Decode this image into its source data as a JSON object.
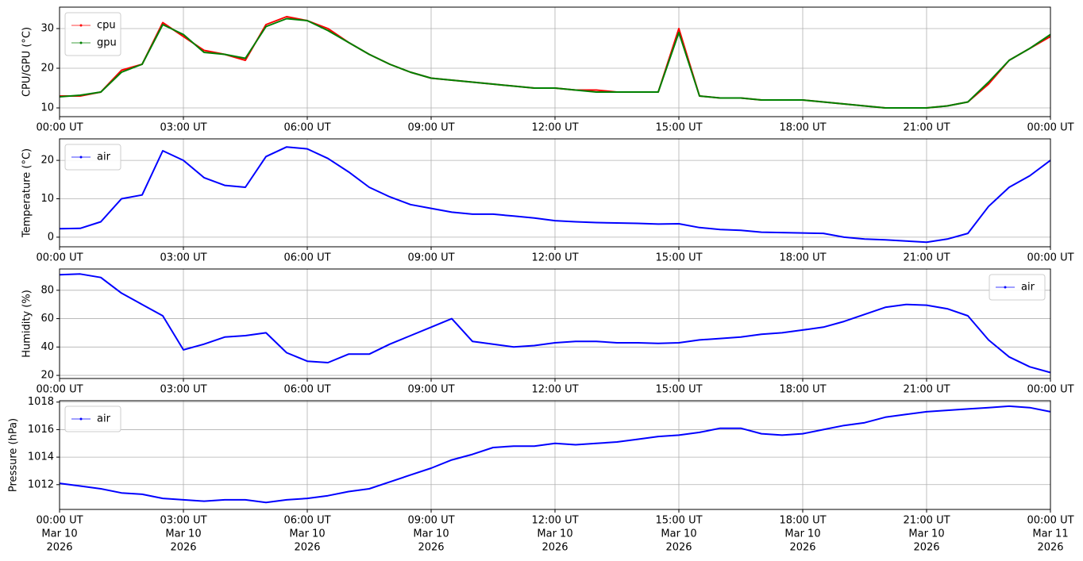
{
  "chart_data": [
    {
      "type": "line",
      "ylabel": "CPU/GPU (°C)",
      "x": [
        "2026-03-10 00:00",
        "2026-03-10 00:30",
        "2026-03-10 01:00",
        "2026-03-10 01:30",
        "2026-03-10 02:00",
        "2026-03-10 02:30",
        "2026-03-10 03:00",
        "2026-03-10 03:30",
        "2026-03-10 04:00",
        "2026-03-10 04:30",
        "2026-03-10 05:00",
        "2026-03-10 05:30",
        "2026-03-10 06:00",
        "2026-03-10 06:30",
        "2026-03-10 07:00",
        "2026-03-10 07:30",
        "2026-03-10 08:00",
        "2026-03-10 08:30",
        "2026-03-10 09:00",
        "2026-03-10 09:30",
        "2026-03-10 10:00",
        "2026-03-10 10:30",
        "2026-03-10 11:00",
        "2026-03-10 11:30",
        "2026-03-10 12:00",
        "2026-03-10 12:30",
        "2026-03-10 13:00",
        "2026-03-10 13:30",
        "2026-03-10 14:00",
        "2026-03-10 14:30",
        "2026-03-10 15:00",
        "2026-03-10 15:30",
        "2026-03-10 16:00",
        "2026-03-10 16:30",
        "2026-03-10 17:00",
        "2026-03-10 17:30",
        "2026-03-10 18:00",
        "2026-03-10 18:30",
        "2026-03-10 19:00",
        "2026-03-10 19:30",
        "2026-03-10 20:00",
        "2026-03-10 20:30",
        "2026-03-10 21:00",
        "2026-03-10 21:30",
        "2026-03-10 22:00",
        "2026-03-10 22:30",
        "2026-03-10 23:00",
        "2026-03-10 23:30",
        "2026-03-11 00:00"
      ],
      "series": [
        {
          "name": "cpu",
          "color": "#ff0000",
          "values": [
            13,
            13,
            14,
            19.5,
            21,
            31.5,
            28,
            24.5,
            23.5,
            22,
            31,
            33,
            32,
            30,
            26.5,
            23.5,
            21,
            19,
            17.5,
            17,
            16.5,
            16,
            15.5,
            15,
            15,
            14.5,
            14.5,
            14,
            14,
            14,
            30,
            13,
            12.5,
            12.5,
            12,
            12,
            12,
            11.5,
            11,
            10.5,
            10,
            10,
            10,
            10.5,
            11.5,
            16,
            22,
            25,
            28
          ]
        },
        {
          "name": "gpu",
          "color": "#008000",
          "values": [
            12.8,
            13.2,
            14,
            19,
            21,
            31,
            28.5,
            24,
            23.5,
            22.5,
            30.5,
            32.5,
            32,
            29.5,
            26.5,
            23.5,
            21,
            19,
            17.5,
            17,
            16.5,
            16,
            15.5,
            15,
            15,
            14.5,
            14,
            14,
            14,
            14,
            29,
            13,
            12.5,
            12.5,
            12,
            12,
            12,
            11.5,
            11,
            10.5,
            10,
            10,
            10,
            10.5,
            11.5,
            16.5,
            22,
            25,
            28.5
          ]
        }
      ],
      "xlim": [
        "2026-03-10 00:00",
        "2026-03-11 00:00"
      ],
      "xticks": [
        {
          "value": "2026-03-10 00:00",
          "label": "00:00 UT"
        },
        {
          "value": "2026-03-10 03:00",
          "label": "03:00 UT"
        },
        {
          "value": "2026-03-10 06:00",
          "label": "06:00 UT"
        },
        {
          "value": "2026-03-10 09:00",
          "label": "09:00 UT"
        },
        {
          "value": "2026-03-10 12:00",
          "label": "12:00 UT"
        },
        {
          "value": "2026-03-10 15:00",
          "label": "15:00 UT"
        },
        {
          "value": "2026-03-10 18:00",
          "label": "18:00 UT"
        },
        {
          "value": "2026-03-10 21:00",
          "label": "21:00 UT"
        },
        {
          "value": "2026-03-11 00:00",
          "label": "00:00 UT"
        }
      ],
      "ylim": [
        7.8,
        35.4
      ],
      "yticks": [
        10,
        20,
        30
      ],
      "grid": true,
      "legend": "upper left"
    },
    {
      "type": "line",
      "ylabel": "Temperature (°C)",
      "x": [
        "2026-03-10 00:00",
        "2026-03-10 00:30",
        "2026-03-10 01:00",
        "2026-03-10 01:30",
        "2026-03-10 02:00",
        "2026-03-10 02:30",
        "2026-03-10 03:00",
        "2026-03-10 03:30",
        "2026-03-10 04:00",
        "2026-03-10 04:30",
        "2026-03-10 05:00",
        "2026-03-10 05:30",
        "2026-03-10 06:00",
        "2026-03-10 06:30",
        "2026-03-10 07:00",
        "2026-03-10 07:30",
        "2026-03-10 08:00",
        "2026-03-10 08:30",
        "2026-03-10 09:00",
        "2026-03-10 09:30",
        "2026-03-10 10:00",
        "2026-03-10 10:30",
        "2026-03-10 11:00",
        "2026-03-10 11:30",
        "2026-03-10 12:00",
        "2026-03-10 12:30",
        "2026-03-10 13:00",
        "2026-03-10 13:30",
        "2026-03-10 14:00",
        "2026-03-10 14:30",
        "2026-03-10 15:00",
        "2026-03-10 15:30",
        "2026-03-10 16:00",
        "2026-03-10 16:30",
        "2026-03-10 17:00",
        "2026-03-10 17:30",
        "2026-03-10 18:00",
        "2026-03-10 18:30",
        "2026-03-10 19:00",
        "2026-03-10 19:30",
        "2026-03-10 20:00",
        "2026-03-10 20:30",
        "2026-03-10 21:00",
        "2026-03-10 21:30",
        "2026-03-10 22:00",
        "2026-03-10 22:30",
        "2026-03-10 23:00",
        "2026-03-10 23:30",
        "2026-03-11 00:00"
      ],
      "series": [
        {
          "name": "air",
          "color": "#0000ff",
          "values": [
            2.2,
            2.3,
            4,
            10,
            11,
            22.5,
            20,
            15.5,
            13.5,
            13,
            21,
            23.5,
            23,
            20.5,
            17,
            13,
            10.5,
            8.5,
            7.5,
            6.5,
            6,
            6,
            5.5,
            5,
            4.3,
            4,
            3.8,
            3.7,
            3.6,
            3.4,
            3.5,
            2.5,
            2,
            1.8,
            1.3,
            1.2,
            1.1,
            1,
            0,
            -0.5,
            -0.7,
            -1,
            -1.3,
            -0.5,
            1,
            8,
            13,
            16,
            20
          ]
        }
      ],
      "xlim": [
        "2026-03-10 00:00",
        "2026-03-11 00:00"
      ],
      "xticks": [
        {
          "value": "2026-03-10 00:00",
          "label": "00:00 UT"
        },
        {
          "value": "2026-03-10 03:00",
          "label": "03:00 UT"
        },
        {
          "value": "2026-03-10 06:00",
          "label": "06:00 UT"
        },
        {
          "value": "2026-03-10 09:00",
          "label": "09:00 UT"
        },
        {
          "value": "2026-03-10 12:00",
          "label": "12:00 UT"
        },
        {
          "value": "2026-03-10 15:00",
          "label": "15:00 UT"
        },
        {
          "value": "2026-03-10 18:00",
          "label": "18:00 UT"
        },
        {
          "value": "2026-03-10 21:00",
          "label": "21:00 UT"
        },
        {
          "value": "2026-03-11 00:00",
          "label": "00:00 UT"
        }
      ],
      "ylim": [
        -2.5,
        25.6
      ],
      "yticks": [
        0,
        10,
        20
      ],
      "grid": true,
      "legend": "upper left"
    },
    {
      "type": "line",
      "ylabel": "Humidity (%)",
      "x": [
        "2026-03-10 00:00",
        "2026-03-10 00:30",
        "2026-03-10 01:00",
        "2026-03-10 01:30",
        "2026-03-10 02:00",
        "2026-03-10 02:30",
        "2026-03-10 03:00",
        "2026-03-10 03:30",
        "2026-03-10 04:00",
        "2026-03-10 04:30",
        "2026-03-10 05:00",
        "2026-03-10 05:30",
        "2026-03-10 06:00",
        "2026-03-10 06:30",
        "2026-03-10 07:00",
        "2026-03-10 07:30",
        "2026-03-10 08:00",
        "2026-03-10 08:30",
        "2026-03-10 09:00",
        "2026-03-10 09:30",
        "2026-03-10 10:00",
        "2026-03-10 10:30",
        "2026-03-10 11:00",
        "2026-03-10 11:30",
        "2026-03-10 12:00",
        "2026-03-10 12:30",
        "2026-03-10 13:00",
        "2026-03-10 13:30",
        "2026-03-10 14:00",
        "2026-03-10 14:30",
        "2026-03-10 15:00",
        "2026-03-10 15:30",
        "2026-03-10 16:00",
        "2026-03-10 16:30",
        "2026-03-10 17:00",
        "2026-03-10 17:30",
        "2026-03-10 18:00",
        "2026-03-10 18:30",
        "2026-03-10 19:00",
        "2026-03-10 19:30",
        "2026-03-10 20:00",
        "2026-03-10 20:30",
        "2026-03-10 21:00",
        "2026-03-10 21:30",
        "2026-03-10 22:00",
        "2026-03-10 22:30",
        "2026-03-10 23:00",
        "2026-03-10 23:30",
        "2026-03-11 00:00"
      ],
      "series": [
        {
          "name": "air",
          "color": "#0000ff",
          "values": [
            91,
            91.5,
            89,
            78,
            70,
            62,
            38,
            42,
            47,
            48,
            50,
            36,
            30,
            29,
            35,
            35,
            42,
            48,
            54,
            60,
            44,
            42,
            40,
            41,
            43,
            44,
            44,
            43,
            43,
            42.5,
            43,
            45,
            46,
            47,
            49,
            50,
            52,
            54,
            58,
            63,
            68,
            70,
            69.5,
            67,
            62,
            45,
            33,
            26,
            22
          ]
        }
      ],
      "xlim": [
        "2026-03-10 00:00",
        "2026-03-11 00:00"
      ],
      "xticks": [
        {
          "value": "2026-03-10 00:00",
          "label": "00:00 UT"
        },
        {
          "value": "2026-03-10 03:00",
          "label": "03:00 UT"
        },
        {
          "value": "2026-03-10 06:00",
          "label": "06:00 UT"
        },
        {
          "value": "2026-03-10 09:00",
          "label": "09:00 UT"
        },
        {
          "value": "2026-03-10 12:00",
          "label": "12:00 UT"
        },
        {
          "value": "2026-03-10 15:00",
          "label": "15:00 UT"
        },
        {
          "value": "2026-03-10 18:00",
          "label": "18:00 UT"
        },
        {
          "value": "2026-03-10 21:00",
          "label": "21:00 UT"
        },
        {
          "value": "2026-03-11 00:00",
          "label": "00:00 UT"
        }
      ],
      "ylim": [
        17.8,
        95
      ],
      "yticks": [
        20,
        40,
        60,
        80
      ],
      "grid": true,
      "legend": "upper right"
    },
    {
      "type": "line",
      "ylabel": "Pressure (hPa)",
      "x": [
        "2026-03-10 00:00",
        "2026-03-10 00:30",
        "2026-03-10 01:00",
        "2026-03-10 01:30",
        "2026-03-10 02:00",
        "2026-03-10 02:30",
        "2026-03-10 03:00",
        "2026-03-10 03:30",
        "2026-03-10 04:00",
        "2026-03-10 04:30",
        "2026-03-10 05:00",
        "2026-03-10 05:30",
        "2026-03-10 06:00",
        "2026-03-10 06:30",
        "2026-03-10 07:00",
        "2026-03-10 07:30",
        "2026-03-10 08:00",
        "2026-03-10 08:30",
        "2026-03-10 09:00",
        "2026-03-10 09:30",
        "2026-03-10 10:00",
        "2026-03-10 10:30",
        "2026-03-10 11:00",
        "2026-03-10 11:30",
        "2026-03-10 12:00",
        "2026-03-10 12:30",
        "2026-03-10 13:00",
        "2026-03-10 13:30",
        "2026-03-10 14:00",
        "2026-03-10 14:30",
        "2026-03-10 15:00",
        "2026-03-10 15:30",
        "2026-03-10 16:00",
        "2026-03-10 16:30",
        "2026-03-10 17:00",
        "2026-03-10 17:30",
        "2026-03-10 18:00",
        "2026-03-10 18:30",
        "2026-03-10 19:00",
        "2026-03-10 19:30",
        "2026-03-10 20:00",
        "2026-03-10 20:30",
        "2026-03-10 21:00",
        "2026-03-10 21:30",
        "2026-03-10 22:00",
        "2026-03-10 22:30",
        "2026-03-10 23:00",
        "2026-03-10 23:30",
        "2026-03-11 00:00"
      ],
      "series": [
        {
          "name": "air",
          "color": "#0000ff",
          "values": [
            1012.1,
            1011.9,
            1011.7,
            1011.4,
            1011.3,
            1011.0,
            1010.9,
            1010.8,
            1010.9,
            1010.9,
            1010.7,
            1010.9,
            1011.0,
            1011.2,
            1011.5,
            1011.7,
            1012.2,
            1012.7,
            1013.2,
            1013.8,
            1014.2,
            1014.7,
            1014.8,
            1014.8,
            1015.0,
            1014.9,
            1015.0,
            1015.1,
            1015.3,
            1015.5,
            1015.6,
            1015.8,
            1016.1,
            1016.1,
            1015.7,
            1015.6,
            1015.7,
            1016.0,
            1016.3,
            1016.5,
            1016.9,
            1017.1,
            1017.3,
            1017.4,
            1017.5,
            1017.6,
            1017.7,
            1017.6,
            1017.3
          ]
        }
      ],
      "xlim": [
        "2026-03-10 00:00",
        "2026-03-11 00:00"
      ],
      "xticks": [
        {
          "value": "2026-03-10 00:00",
          "label": [
            "00:00 UT",
            "Mar 10",
            "2026"
          ]
        },
        {
          "value": "2026-03-10 03:00",
          "label": [
            "03:00 UT",
            "Mar 10",
            "2026"
          ]
        },
        {
          "value": "2026-03-10 06:00",
          "label": [
            "06:00 UT",
            "Mar 10",
            "2026"
          ]
        },
        {
          "value": "2026-03-10 09:00",
          "label": [
            "09:00 UT",
            "Mar 10",
            "2026"
          ]
        },
        {
          "value": "2026-03-10 12:00",
          "label": [
            "12:00 UT",
            "Mar 10",
            "2026"
          ]
        },
        {
          "value": "2026-03-10 15:00",
          "label": [
            "15:00 UT",
            "Mar 10",
            "2026"
          ]
        },
        {
          "value": "2026-03-10 18:00",
          "label": [
            "18:00 UT",
            "Mar 10",
            "2026"
          ]
        },
        {
          "value": "2026-03-10 21:00",
          "label": [
            "21:00 UT",
            "Mar 10",
            "2026"
          ]
        },
        {
          "value": "2026-03-11 00:00",
          "label": [
            "00:00 UT",
            "Mar 11",
            "2026"
          ]
        }
      ],
      "ylim": [
        1010.2,
        1018.1
      ],
      "yticks": [
        1012,
        1014,
        1016,
        1018
      ],
      "grid": true,
      "legend": "upper left"
    }
  ]
}
